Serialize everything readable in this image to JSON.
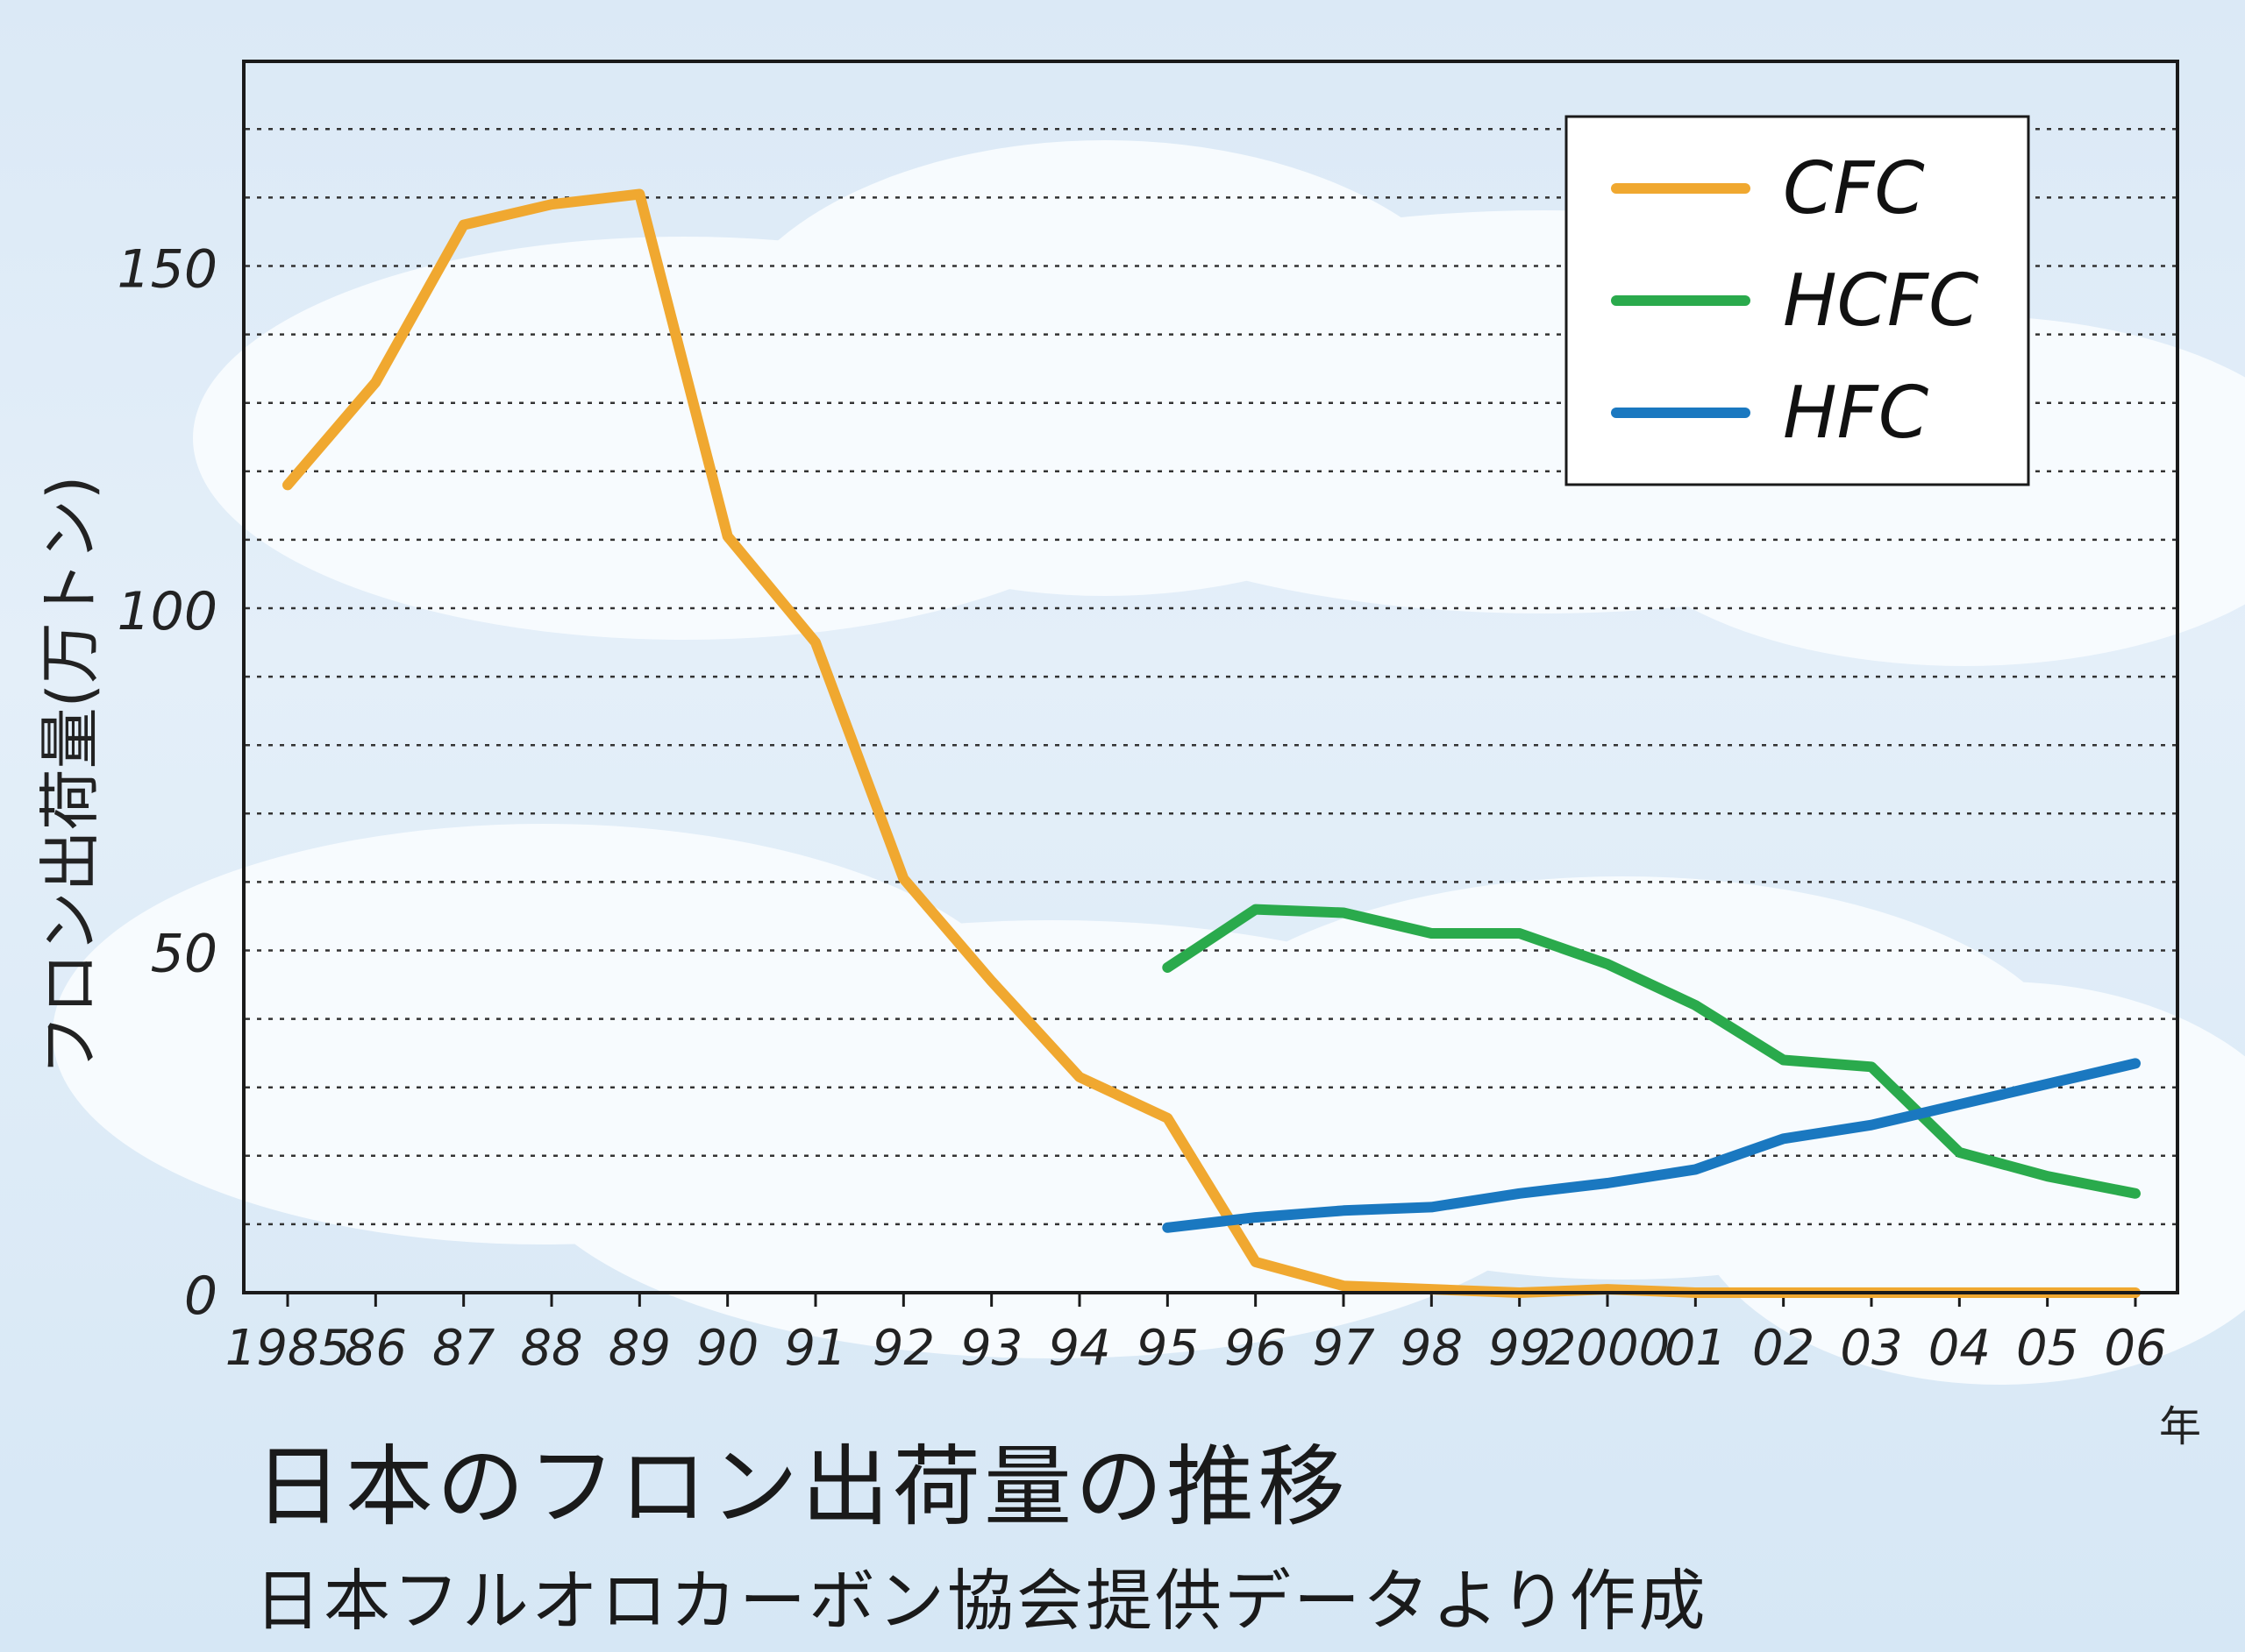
{
  "chart_data": {
    "type": "line",
    "title": "日本のフロン出荷量の推移",
    "subtitle": "日本フルオロカーボン協会提供データより作成",
    "ylabel": "フロン出荷量(万トン)",
    "x_unit": "年",
    "ylim": [
      0,
      178
    ],
    "yticks": [
      0,
      50,
      100,
      150
    ],
    "grid": true,
    "legend_position": "top-right",
    "x": [
      1985,
      1986,
      1987,
      1988,
      1989,
      1990,
      1991,
      1992,
      1993,
      1994,
      1995,
      1996,
      1997,
      1998,
      1999,
      2000,
      2001,
      2002,
      2003,
      2004,
      2005,
      2006
    ],
    "x_tick_labels": [
      "1985",
      "86",
      "87",
      "88",
      "89",
      "90",
      "91",
      "92",
      "93",
      "94",
      "95",
      "96",
      "97",
      "98",
      "99",
      "2000",
      "01",
      "02",
      "03",
      "04",
      "05",
      "06"
    ],
    "series": [
      {
        "name": "CFC",
        "color": "#f0a830",
        "values": [
          118,
          133,
          156,
          159,
          160.5,
          110.5,
          95,
          60.5,
          45.5,
          31.5,
          25.5,
          4.5,
          1,
          0.5,
          0,
          0.5,
          0,
          0,
          0,
          0,
          0,
          0
        ]
      },
      {
        "name": "HCFC",
        "color": "#2aaa4c",
        "values": [
          null,
          null,
          null,
          null,
          null,
          null,
          null,
          null,
          null,
          null,
          47.5,
          56,
          55.5,
          52.5,
          52.5,
          48,
          42,
          34,
          33,
          20.5,
          17,
          14.5
        ]
      },
      {
        "name": "HFC",
        "color": "#1a78c0",
        "values": [
          null,
          null,
          null,
          null,
          null,
          null,
          null,
          null,
          null,
          null,
          9.5,
          11,
          12,
          12.5,
          14.5,
          16,
          18,
          22.5,
          24.5,
          27.5,
          30.5,
          33.5
        ]
      }
    ]
  }
}
